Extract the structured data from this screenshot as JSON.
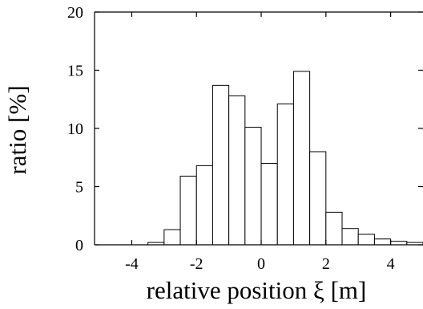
{
  "chart_data": {
    "type": "bar",
    "title": "",
    "xlabel": "relative position  ξ [m]",
    "ylabel": "ratio [%]",
    "xlim": [
      -5.15,
      5.0
    ],
    "ylim": [
      0,
      20
    ],
    "grid": false,
    "legend": "none",
    "x_ticks": [
      -4,
      -2,
      0,
      2,
      4
    ],
    "x_tick_labels": [
      "-4",
      "-2",
      "0",
      "2",
      "4"
    ],
    "y_ticks": [
      0,
      5,
      10,
      15,
      20
    ],
    "y_tick_labels": [
      "0",
      "5",
      "10",
      "15",
      "20"
    ],
    "bin_width": 0.5,
    "bins": [
      {
        "x0": -4.0,
        "x1": -3.5,
        "value": 0.0
      },
      {
        "x0": -3.5,
        "x1": -3.0,
        "value": 0.2
      },
      {
        "x0": -3.0,
        "x1": -2.5,
        "value": 1.3
      },
      {
        "x0": -2.5,
        "x1": -2.0,
        "value": 5.9
      },
      {
        "x0": -2.0,
        "x1": -1.5,
        "value": 6.8
      },
      {
        "x0": -1.5,
        "x1": -1.0,
        "value": 13.7
      },
      {
        "x0": -1.0,
        "x1": -0.5,
        "value": 12.8
      },
      {
        "x0": -0.5,
        "x1": 0.0,
        "value": 10.1
      },
      {
        "x0": 0.0,
        "x1": 0.5,
        "value": 7.0
      },
      {
        "x0": 0.5,
        "x1": 1.0,
        "value": 12.1
      },
      {
        "x0": 1.0,
        "x1": 1.5,
        "value": 14.9
      },
      {
        "x0": 1.5,
        "x1": 2.0,
        "value": 8.0
      },
      {
        "x0": 2.0,
        "x1": 2.5,
        "value": 2.8
      },
      {
        "x0": 2.5,
        "x1": 3.0,
        "value": 1.4
      },
      {
        "x0": 3.0,
        "x1": 3.5,
        "value": 0.9
      },
      {
        "x0": 3.5,
        "x1": 4.0,
        "value": 0.5
      },
      {
        "x0": 4.0,
        "x1": 4.5,
        "value": 0.3
      },
      {
        "x0": 4.5,
        "x1": 5.0,
        "value": 0.2
      }
    ]
  },
  "colors": {
    "bar_fill": "#ffffff",
    "bar_stroke": "#000000",
    "axis": "#000000"
  }
}
